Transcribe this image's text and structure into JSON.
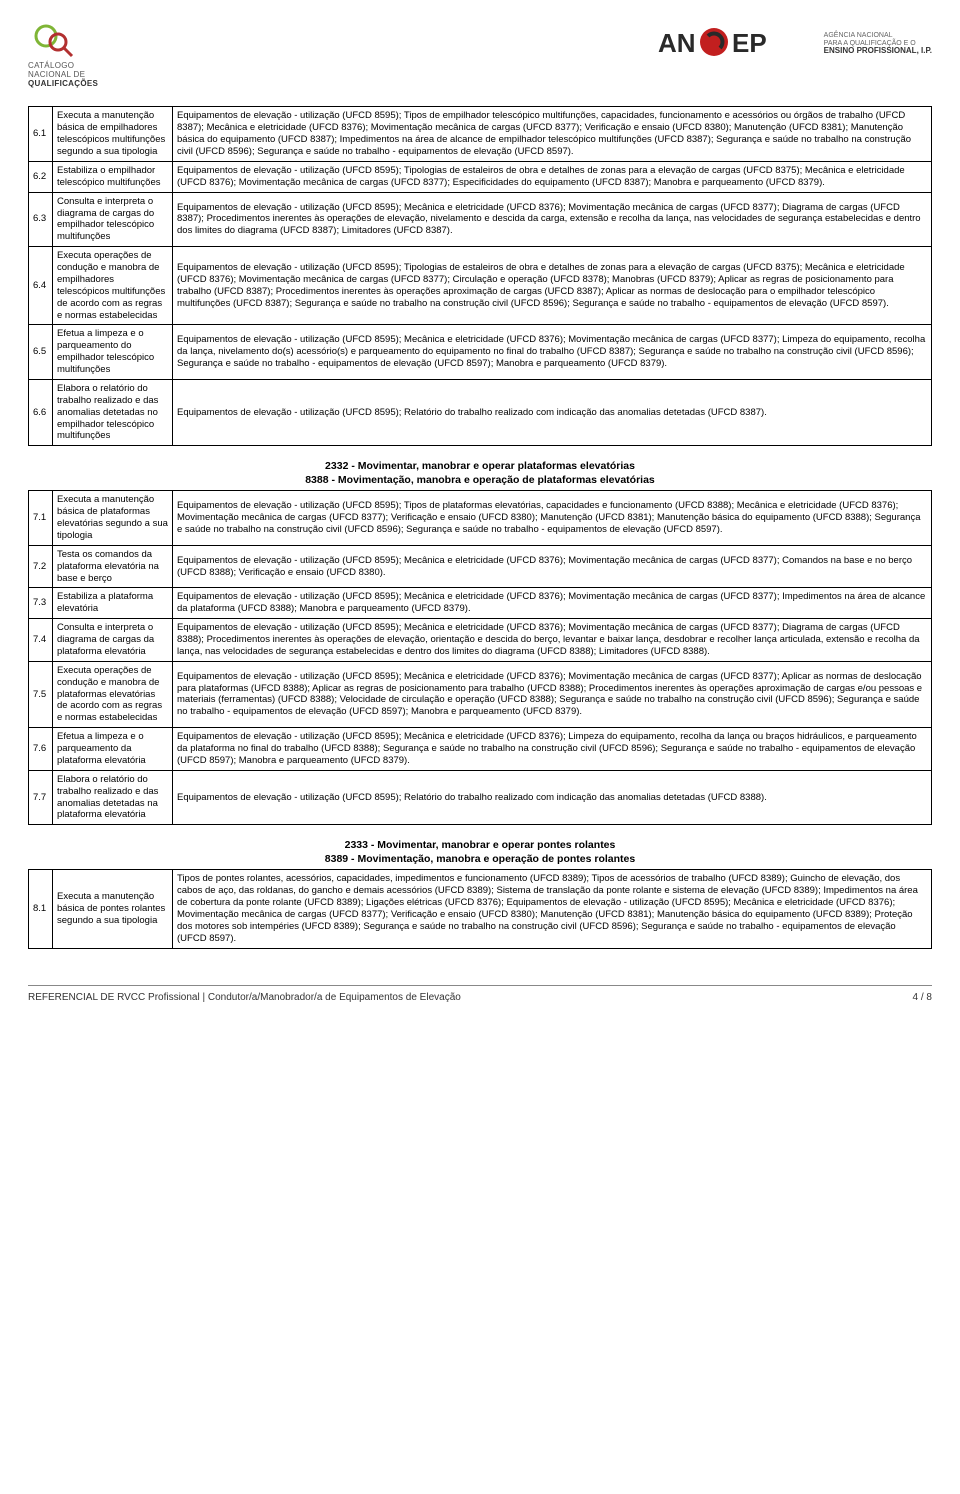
{
  "logos": {
    "left": {
      "line1": "CATÁLOGO",
      "line2_a": "NACIONAL DE",
      "line3": "QUALIFICAÇÕES",
      "accent_green": "#7fb536",
      "accent_red": "#b23030"
    },
    "right": {
      "brand": "ANQEP",
      "sub1": "AGÊNCIA NACIONAL",
      "sub2": "PARA A QUALIFICAÇÃO E O",
      "sub3": "ENSINO PROFISSIONAL, I.P.",
      "accent_red": "#c21f1f",
      "accent_dark": "#2a2a2a"
    }
  },
  "table1": [
    {
      "num": "6.1",
      "task": "Executa a manutenção básica de empilhadores telescópicos multifunções segundo a sua tipologia",
      "desc": "Equipamentos de elevação - utilização (UFCD 8595); Tipos de empilhador telescópico multifunções, capacidades, funcionamento e acessórios ou órgãos de trabalho (UFCD 8387); Mecânica e eletricidade (UFCD 8376); Movimentação mecânica de cargas (UFCD 8377); Verificação e ensaio (UFCD 8380); Manutenção (UFCD 8381); Manutenção básica do equipamento (UFCD 8387); Impedimentos na área de alcance de empilhador telescópico multifunções (UFCD 8387); Segurança e saúde no trabalho na construção civil (UFCD 8596); Segurança e saúde no trabalho - equipamentos de elevação (UFCD 8597)."
    },
    {
      "num": "6.2",
      "task": "Estabiliza o empilhador telescópico multifunções",
      "desc": "Equipamentos de elevação - utilização (UFCD 8595); Tipologias de estaleiros de obra e detalhes de zonas para a elevação de cargas (UFCD 8375); Mecânica e eletricidade (UFCD 8376); Movimentação mecânica de cargas (UFCD 8377); Especificidades do equipamento (UFCD 8387); Manobra e parqueamento (UFCD 8379)."
    },
    {
      "num": "6.3",
      "task": "Consulta e interpreta o diagrama de cargas do empilhador telescópico multifunções",
      "desc": "Equipamentos de elevação - utilização (UFCD 8595); Mecânica e eletricidade (UFCD 8376); Movimentação mecânica de cargas (UFCD 8377); Diagrama de cargas (UFCD 8387); Procedimentos inerentes às operações de elevação, nivelamento e descida da carga, extensão e recolha da lança, nas velocidades de segurança estabelecidas e dentro dos limites do diagrama (UFCD 8387); Limitadores (UFCD 8387)."
    },
    {
      "num": "6.4",
      "task": "Executa operações de condução e manobra de empilhadores telescópicos multifunções de acordo com as regras e normas estabelecidas",
      "desc": "Equipamentos de elevação - utilização (UFCD 8595); Tipologias de estaleiros de obra e detalhes de zonas para a elevação de cargas (UFCD 8375); Mecânica e eletricidade (UFCD 8376); Movimentação mecânica de cargas (UFCD 8377); Circulação e operação (UFCD 8378); Manobras (UFCD 8379); Aplicar as regras de posicionamento para trabalho (UFCD 8387); Procedimentos inerentes às operações aproximação de cargas (UFCD 8387); Aplicar as normas de deslocação para o empilhador telescópico multifunções (UFCD 8387); Segurança e saúde no trabalho na construção civil (UFCD 8596); Segurança e saúde no trabalho - equipamentos de elevação (UFCD 8597)."
    },
    {
      "num": "6.5",
      "task": "Efetua a limpeza e o parqueamento do empilhador telescópico multifunções",
      "desc": "Equipamentos de elevação - utilização (UFCD 8595); Mecânica e eletricidade (UFCD 8376); Movimentação mecânica de cargas (UFCD 8377); Limpeza do equipamento, recolha da lança, nivelamento do(s) acessório(s) e parqueamento do equipamento no final do trabalho (UFCD 8387); Segurança e saúde no trabalho na construção civil (UFCD 8596); Segurança e saúde no trabalho - equipamentos de elevação (UFCD 8597); Manobra e parqueamento (UFCD 8379)."
    },
    {
      "num": "6.6",
      "task": "Elabora o relatório do trabalho realizado e das anomalias detetadas no empilhador telescópico multifunções",
      "desc": "Equipamentos de elevação - utilização (UFCD 8595); Relatório do trabalho realizado com indicação das anomalias detetadas (UFCD 8387)."
    }
  ],
  "section2": {
    "line1": "2332 - Movimentar, manobrar e operar plataformas elevatórias",
    "line2": "8388 - Movimentação, manobra e operação de plataformas elevatórias"
  },
  "table2": [
    {
      "num": "7.1",
      "task": "Executa a manutenção básica de plataformas elevatórias segundo a sua tipologia",
      "desc": "Equipamentos de elevação - utilização (UFCD 8595); Tipos de plataformas elevatórias, capacidades e funcionamento (UFCD 8388); Mecânica e eletricidade (UFCD 8376); Movimentação mecânica de cargas (UFCD 8377); Verificação e ensaio (UFCD 8380); Manutenção (UFCD 8381); Manutenção básica do equipamento (UFCD 8388); Segurança e saúde no trabalho na construção civil (UFCD 8596); Segurança e saúde no trabalho - equipamentos de elevação (UFCD 8597)."
    },
    {
      "num": "7.2",
      "task": "Testa os comandos da plataforma elevatória na base e berço",
      "desc": "Equipamentos de elevação - utilização (UFCD 8595); Mecânica e eletricidade (UFCD 8376); Movimentação mecânica de cargas (UFCD 8377); Comandos na base e no berço (UFCD 8388); Verificação e ensaio (UFCD 8380)."
    },
    {
      "num": "7.3",
      "task": "Estabiliza a plataforma elevatória",
      "desc": "Equipamentos de elevação - utilização (UFCD 8595); Mecânica e eletricidade (UFCD 8376); Movimentação mecânica de cargas (UFCD 8377); Impedimentos na área de alcance da plataforma (UFCD 8388); Manobra e parqueamento (UFCD 8379)."
    },
    {
      "num": "7.4",
      "task": "Consulta e interpreta o diagrama de cargas da plataforma elevatória",
      "desc": "Equipamentos de elevação - utilização (UFCD 8595); Mecânica e eletricidade (UFCD 8376); Movimentação mecânica de cargas (UFCD 8377); Diagrama de cargas (UFCD 8388); Procedimentos inerentes às operações de elevação, orientação e descida do berço, levantar e baixar lança, desdobrar e recolher lança articulada, extensão e recolha da lança, nas velocidades de segurança estabelecidas e dentro dos limites do diagrama (UFCD 8388); Limitadores (UFCD 8388)."
    },
    {
      "num": "7.5",
      "task": "Executa operações de condução e manobra de plataformas elevatórias de acordo com as regras e normas estabelecidas",
      "desc": "Equipamentos de elevação - utilização (UFCD 8595); Mecânica e eletricidade (UFCD 8376); Movimentação mecânica de cargas (UFCD 8377); Aplicar as normas de deslocação para plataformas (UFCD 8388); Aplicar as regras de posicionamento para trabalho (UFCD 8388); Procedimentos inerentes às operações aproximação de cargas e/ou pessoas e materiais (ferramentas) (UFCD 8388); Velocidade de circulação e operação (UFCD 8388); Segurança e saúde no trabalho na construção civil (UFCD 8596); Segurança e saúde no trabalho - equipamentos de elevação (UFCD 8597); Manobra e parqueamento (UFCD 8379)."
    },
    {
      "num": "7.6",
      "task": "Efetua a limpeza e o parqueamento da plataforma elevatória",
      "desc": "Equipamentos de elevação - utilização (UFCD 8595); Mecânica e eletricidade (UFCD 8376); Limpeza do equipamento, recolha da lança ou braços hidráulicos, e parqueamento da plataforma no final do trabalho (UFCD 8388); Segurança e saúde no trabalho na construção civil (UFCD 8596); Segurança e saúde no trabalho - equipamentos de elevação (UFCD 8597); Manobra e parqueamento (UFCD 8379)."
    },
    {
      "num": "7.7",
      "task": "Elabora o relatório do trabalho realizado e das anomalias detetadas na plataforma elevatória",
      "desc": "Equipamentos de elevação - utilização (UFCD 8595); Relatório do trabalho realizado com indicação das anomalias detetadas (UFCD 8388)."
    }
  ],
  "section3": {
    "line1": "2333 - Movimentar, manobrar e operar pontes rolantes",
    "line2": "8389 - Movimentação, manobra e operação de pontes rolantes"
  },
  "table3": [
    {
      "num": "8.1",
      "task": "Executa a manutenção básica de pontes rolantes segundo a sua tipologia",
      "desc": "Tipos de pontes rolantes, acessórios, capacidades, impedimentos e funcionamento (UFCD 8389); Tipos de acessórios de trabalho (UFCD 8389); Guincho de elevação, dos cabos de aço, das roldanas, do gancho e demais acessórios (UFCD 8389); Sistema de translação da ponte rolante e sistema de elevação (UFCD 8389); Impedimentos na área de cobertura da ponte rolante (UFCD 8389); Ligações elétricas (UFCD 8376); Equipamentos de elevação - utilização (UFCD 8595); Mecânica e eletricidade (UFCD 8376); Movimentação mecânica de cargas (UFCD 8377); Verificação e ensaio (UFCD 8380); Manutenção (UFCD 8381); Manutenção básica do equipamento (UFCD 8389); Proteção dos motores sob intempéries (UFCD 8389); Segurança e saúde no trabalho na construção civil (UFCD 8596); Segurança e saúde no trabalho - equipamentos de elevação (UFCD 8597)."
    }
  ],
  "footer": {
    "left": "REFERENCIAL DE RVCC Profissional | Condutor/a/Manobrador/a de Equipamentos de Elevação",
    "right": "4 / 8"
  }
}
